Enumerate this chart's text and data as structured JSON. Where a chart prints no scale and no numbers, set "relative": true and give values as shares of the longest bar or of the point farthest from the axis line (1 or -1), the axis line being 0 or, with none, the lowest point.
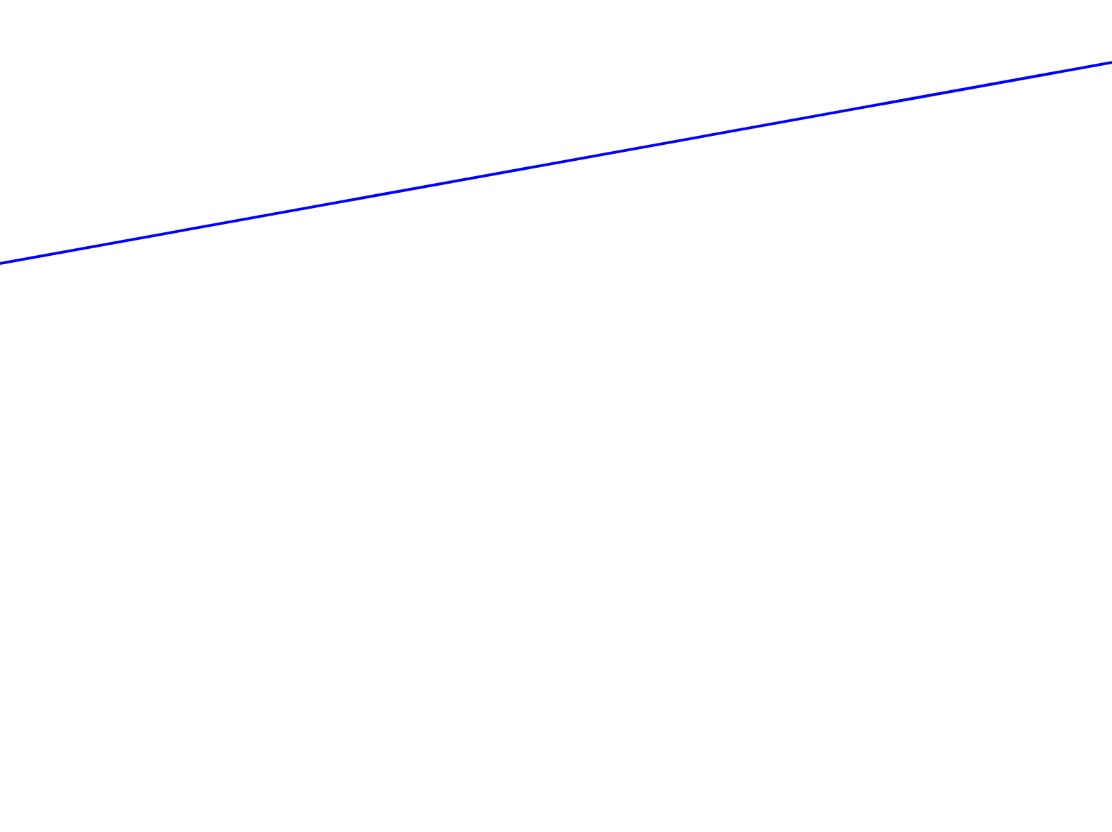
{
  "chart_data": {
    "type": "line",
    "relative": true,
    "categories": [
      null,
      null
    ],
    "marker": "none",
    "series": [
      {
        "color": "#0000ff",
        "values": [
          0,
          1
        ]
      }
    ]
  }
}
